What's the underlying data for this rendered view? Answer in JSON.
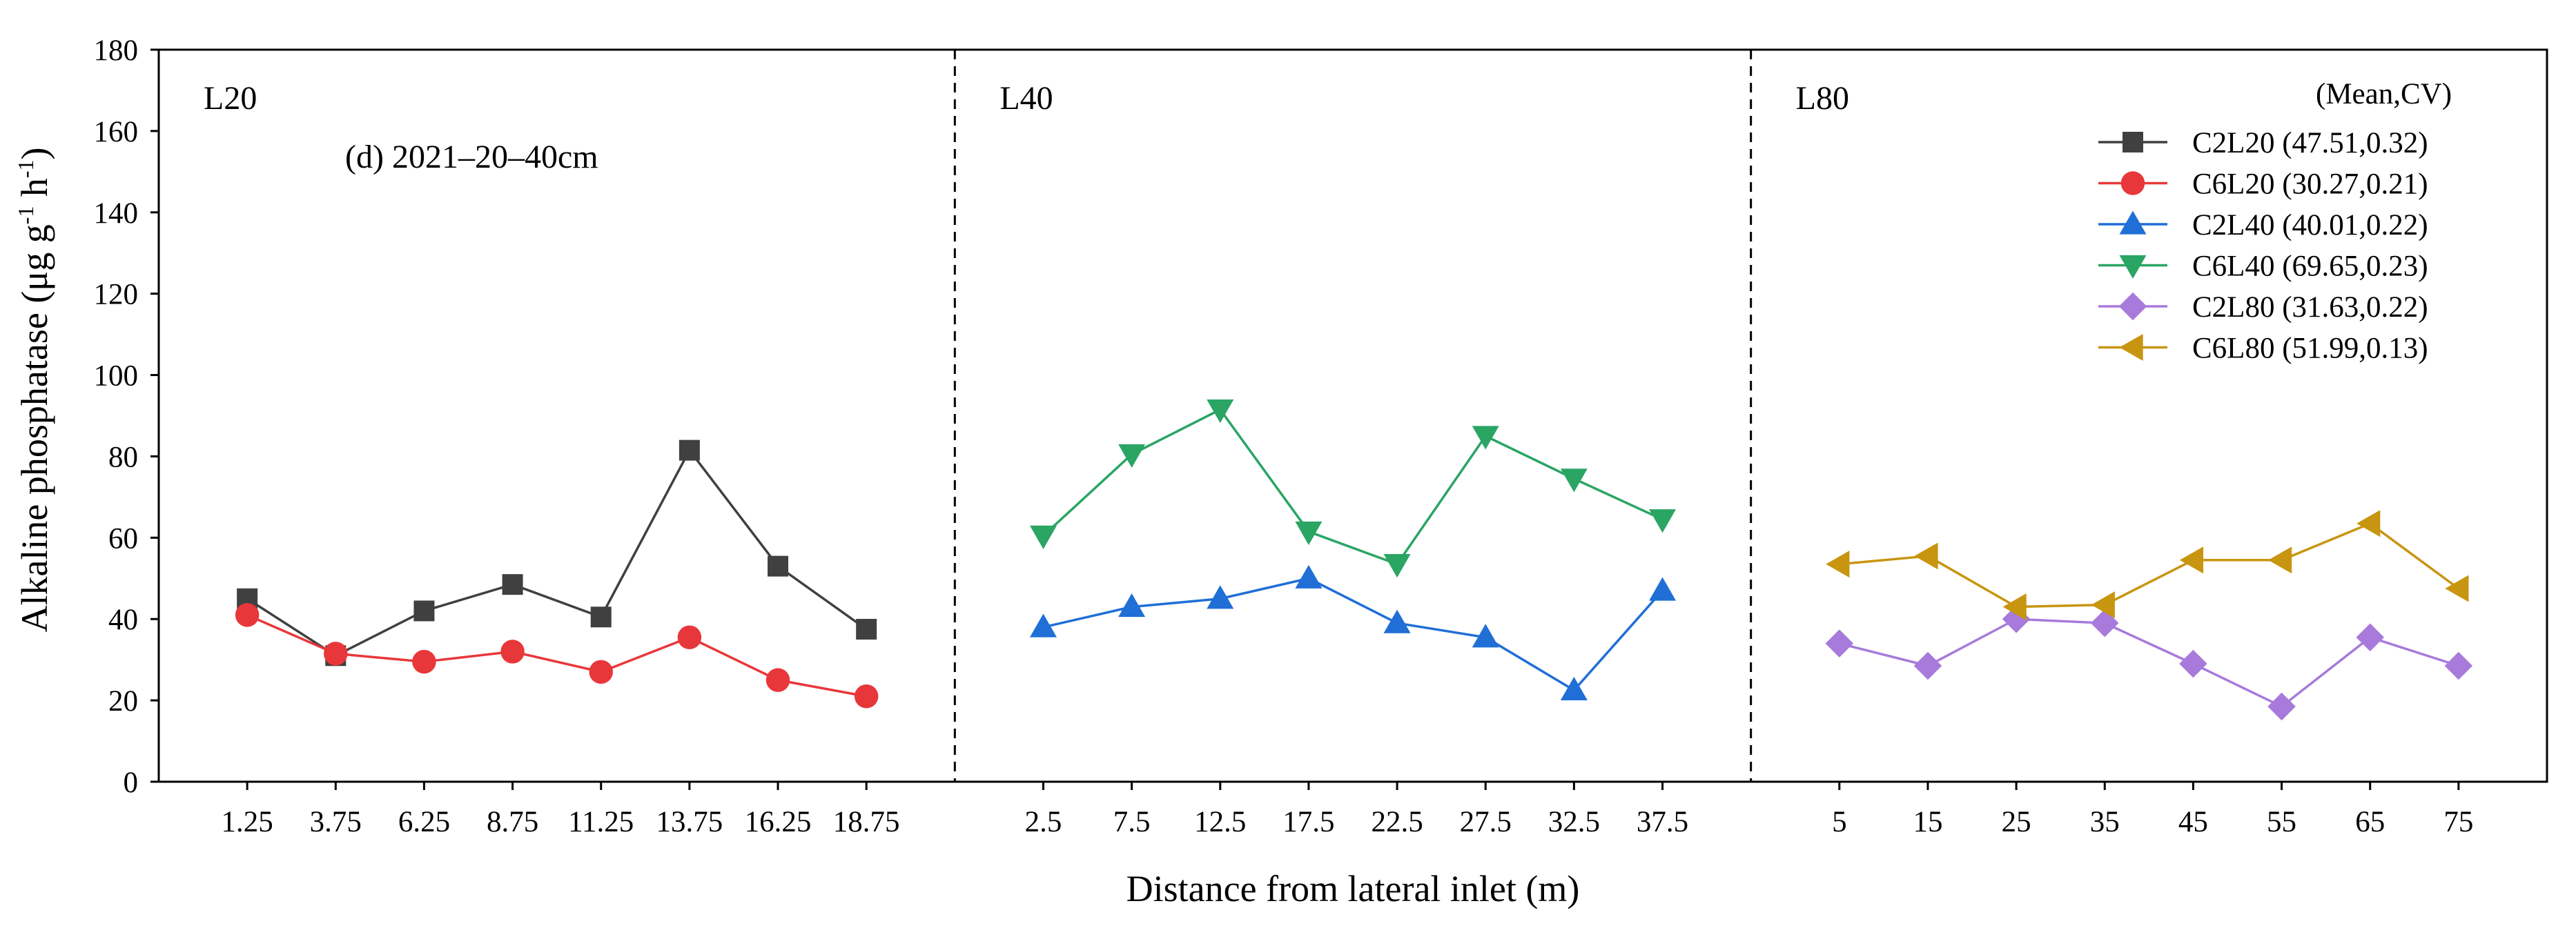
{
  "chart_data": {
    "type": "line",
    "title": "(d) 2021–20–40cm",
    "xlabel": "Distance from lateral inlet (m)",
    "ylabel_main": "Alkaline phosphatase (μg g",
    "ylabel_sup1": "-1",
    "ylabel_mid": " h",
    "ylabel_sup2": "-1",
    "ylabel_end": ")",
    "ylim": [
      0,
      180
    ],
    "yticks": [
      "0",
      "20",
      "40",
      "60",
      "80",
      "100",
      "120",
      "140",
      "160",
      "180"
    ],
    "legend_header": "(Mean,CV)",
    "panels": [
      {
        "label": "L20",
        "categories": [
          "1.25",
          "3.75",
          "6.25",
          "8.75",
          "11.25",
          "13.75",
          "16.25",
          "18.75"
        ],
        "series": [
          {
            "name": "C2L20",
            "stats": "(47.51,0.32)",
            "color": "#404040",
            "marker": "square",
            "values": [
              45,
              31,
              42,
              48.5,
              40.5,
              81.5,
              53,
              37.5
            ]
          },
          {
            "name": "C6L20",
            "stats": "(30.27,0.21)",
            "color": "#e8373a",
            "marker": "circle",
            "values": [
              41,
              31.5,
              29.5,
              32,
              27,
              35.5,
              25,
              21
            ]
          }
        ]
      },
      {
        "label": "L40",
        "categories": [
          "2.5",
          "7.5",
          "12.5",
          "17.5",
          "22.5",
          "27.5",
          "32.5",
          "37.5"
        ],
        "series": [
          {
            "name": "C2L40",
            "stats": "(40.01,0.22)",
            "color": "#1f6fd6",
            "marker": "triangle-up",
            "values": [
              38,
              43,
              45,
              50,
              39,
              35.5,
              22.5,
              47
            ]
          },
          {
            "name": "C6L40",
            "stats": "(69.65,0.23)",
            "color": "#2aa564",
            "marker": "triangle-down",
            "values": [
              60.5,
              80.5,
              91.5,
              61.5,
              53.5,
              85,
              74.5,
              64.5
            ]
          }
        ]
      },
      {
        "label": "L80",
        "categories": [
          "5",
          "15",
          "25",
          "35",
          "45",
          "55",
          "65",
          "75"
        ],
        "series": [
          {
            "name": "C2L80",
            "stats": "(31.63,0.22)",
            "color": "#a87adb",
            "marker": "diamond",
            "values": [
              34,
              28.5,
              40,
              39,
              29,
              18.5,
              35.5,
              28.5
            ]
          },
          {
            "name": "C6L80",
            "stats": "(51.99,0.13)",
            "color": "#c89510",
            "marker": "triangle-left",
            "values": [
              53.5,
              55.5,
              43,
              43.5,
              54.5,
              54.5,
              63.5,
              47.5
            ]
          }
        ]
      }
    ],
    "legend_position": "top-right"
  }
}
